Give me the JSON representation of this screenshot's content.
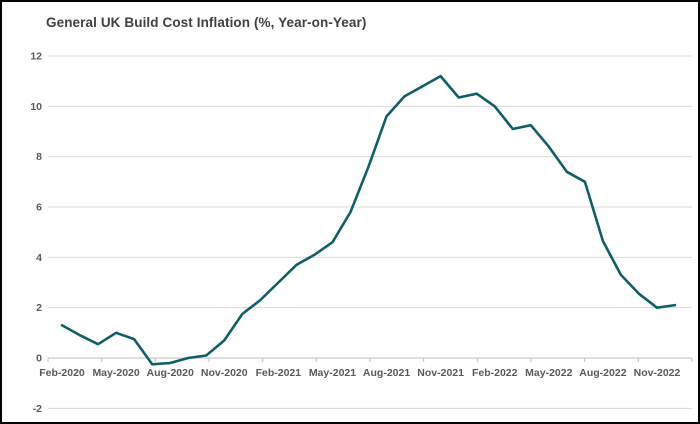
{
  "title": "General UK Build Cost Inflation (%, Year-on-Year)",
  "colors": {
    "background": "#FFFFFF",
    "frame_border": "#000000",
    "title_text": "#404040",
    "tick_text": "#595959",
    "gridline": "#D9D9D9",
    "axis_line": "#BFBFBF",
    "line": "#115E68"
  },
  "chart_data": {
    "type": "line",
    "title": "General UK Build Cost Inflation (%, Year-on-Year)",
    "xlabel": "",
    "ylabel": "",
    "ylim": [
      -2,
      12
    ],
    "y_ticks": [
      -2,
      0,
      2,
      4,
      6,
      8,
      10,
      12
    ],
    "grid": true,
    "legend": false,
    "x": [
      "Feb-2020",
      "Mar-2020",
      "Apr-2020",
      "May-2020",
      "Jun-2020",
      "Jul-2020",
      "Aug-2020",
      "Sep-2020",
      "Oct-2020",
      "Nov-2020",
      "Dec-2020",
      "Jan-2021",
      "Feb-2021",
      "Mar-2021",
      "Apr-2021",
      "May-2021",
      "Jun-2021",
      "Jul-2021",
      "Aug-2021",
      "Sep-2021",
      "Oct-2021",
      "Nov-2021",
      "Dec-2021",
      "Jan-2022",
      "Feb-2022",
      "Mar-2022",
      "Apr-2022",
      "May-2022",
      "Jun-2022",
      "Jul-2022",
      "Aug-2022",
      "Sep-2022",
      "Oct-2022",
      "Nov-2022",
      "Dec-2022"
    ],
    "values": [
      1.3,
      0.9,
      0.55,
      1.0,
      0.75,
      -0.25,
      -0.2,
      0.0,
      0.1,
      0.7,
      1.75,
      2.3,
      3.0,
      3.7,
      4.1,
      4.6,
      5.8,
      7.6,
      9.6,
      10.4,
      10.8,
      11.2,
      10.35,
      10.5,
      10.0,
      9.1,
      9.25,
      8.4,
      7.4,
      7.0,
      4.65,
      3.3,
      2.55,
      2.0,
      2.1
    ],
    "x_tick_labels": [
      "Feb-2020",
      "May-2020",
      "Aug-2020",
      "Nov-2020",
      "Feb-2021",
      "May-2021",
      "Aug-2021",
      "Nov-2021",
      "Feb-2022",
      "May-2022",
      "Aug-2022",
      "Nov-2022"
    ],
    "x_tick_interval_months": 3
  }
}
